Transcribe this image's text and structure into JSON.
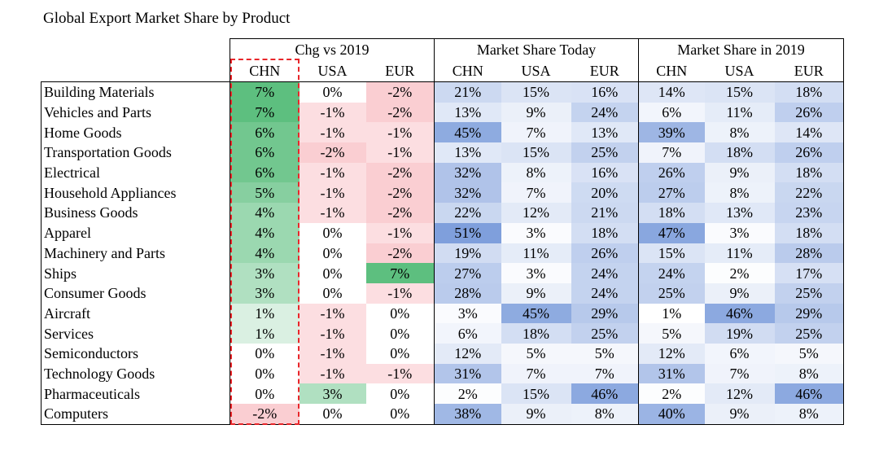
{
  "chart_data": {
    "type": "table",
    "title": "Global Export Market Share by Product",
    "column_groups": [
      {
        "name": "Chg vs 2019",
        "columns": [
          "CHN",
          "USA",
          "EUR"
        ]
      },
      {
        "name": "Market Share Today",
        "columns": [
          "CHN",
          "USA",
          "EUR"
        ]
      },
      {
        "name": "Market Share in 2019",
        "columns": [
          "CHN",
          "USA",
          "EUR"
        ]
      }
    ],
    "highlighted_column": {
      "group": "Chg vs 2019",
      "column": "CHN",
      "style": "red dashed outline"
    },
    "colors": {
      "positive": "#5dbf7f",
      "negative": "#f6a3aa",
      "share": "#7f9fdc",
      "highlight_outline": "#e8262a"
    },
    "rows": [
      {
        "label": "Building Materials",
        "chg": [
          "7%",
          "0%",
          "-2%"
        ],
        "today": [
          "21%",
          "15%",
          "16%"
        ],
        "y2019": [
          "14%",
          "15%",
          "18%"
        ]
      },
      {
        "label": "Vehicles and Parts",
        "chg": [
          "7%",
          "-1%",
          "-2%"
        ],
        "today": [
          "13%",
          "9%",
          "24%"
        ],
        "y2019": [
          "6%",
          "11%",
          "26%"
        ]
      },
      {
        "label": "Home Goods",
        "chg": [
          "6%",
          "-1%",
          "-1%"
        ],
        "today": [
          "45%",
          "7%",
          "13%"
        ],
        "y2019": [
          "39%",
          "8%",
          "14%"
        ]
      },
      {
        "label": "Transportation Goods",
        "chg": [
          "6%",
          "-2%",
          "-1%"
        ],
        "today": [
          "13%",
          "15%",
          "25%"
        ],
        "y2019": [
          "7%",
          "18%",
          "26%"
        ]
      },
      {
        "label": "Electrical",
        "chg": [
          "6%",
          "-1%",
          "-2%"
        ],
        "today": [
          "32%",
          "8%",
          "16%"
        ],
        "y2019": [
          "26%",
          "9%",
          "18%"
        ]
      },
      {
        "label": "Household Appliances",
        "chg": [
          "5%",
          "-1%",
          "-2%"
        ],
        "today": [
          "32%",
          "7%",
          "20%"
        ],
        "y2019": [
          "27%",
          "8%",
          "22%"
        ]
      },
      {
        "label": "Business Goods",
        "chg": [
          "4%",
          "-1%",
          "-2%"
        ],
        "today": [
          "22%",
          "12%",
          "21%"
        ],
        "y2019": [
          "18%",
          "13%",
          "23%"
        ]
      },
      {
        "label": "Apparel",
        "chg": [
          "4%",
          "0%",
          "-1%"
        ],
        "today": [
          "51%",
          "3%",
          "18%"
        ],
        "y2019": [
          "47%",
          "3%",
          "18%"
        ]
      },
      {
        "label": "Machinery and Parts",
        "chg": [
          "4%",
          "0%",
          "-2%"
        ],
        "today": [
          "19%",
          "11%",
          "26%"
        ],
        "y2019": [
          "15%",
          "11%",
          "28%"
        ]
      },
      {
        "label": "Ships",
        "chg": [
          "3%",
          "0%",
          "7%"
        ],
        "today": [
          "27%",
          "3%",
          "24%"
        ],
        "y2019": [
          "24%",
          "2%",
          "17%"
        ]
      },
      {
        "label": "Consumer Goods",
        "chg": [
          "3%",
          "0%",
          "-1%"
        ],
        "today": [
          "28%",
          "9%",
          "24%"
        ],
        "y2019": [
          "25%",
          "9%",
          "25%"
        ]
      },
      {
        "label": "Aircraft",
        "chg": [
          "1%",
          "-1%",
          "0%"
        ],
        "today": [
          "3%",
          "45%",
          "29%"
        ],
        "y2019": [
          "1%",
          "46%",
          "29%"
        ]
      },
      {
        "label": "Services",
        "chg": [
          "1%",
          "-1%",
          "0%"
        ],
        "today": [
          "6%",
          "18%",
          "25%"
        ],
        "y2019": [
          "5%",
          "19%",
          "25%"
        ]
      },
      {
        "label": "Semiconductors",
        "chg": [
          "0%",
          "-1%",
          "0%"
        ],
        "today": [
          "12%",
          "5%",
          "5%"
        ],
        "y2019": [
          "12%",
          "6%",
          "5%"
        ]
      },
      {
        "label": "Technology Goods",
        "chg": [
          "0%",
          "-1%",
          "-1%"
        ],
        "today": [
          "31%",
          "7%",
          "7%"
        ],
        "y2019": [
          "31%",
          "7%",
          "8%"
        ]
      },
      {
        "label": "Pharmaceuticals",
        "chg": [
          "0%",
          "3%",
          "0%"
        ],
        "today": [
          "2%",
          "15%",
          "46%"
        ],
        "y2019": [
          "2%",
          "12%",
          "46%"
        ]
      },
      {
        "label": "Computers",
        "chg": [
          "-2%",
          "0%",
          "0%"
        ],
        "today": [
          "38%",
          "9%",
          "8%"
        ],
        "y2019": [
          "40%",
          "9%",
          "8%"
        ]
      }
    ]
  }
}
